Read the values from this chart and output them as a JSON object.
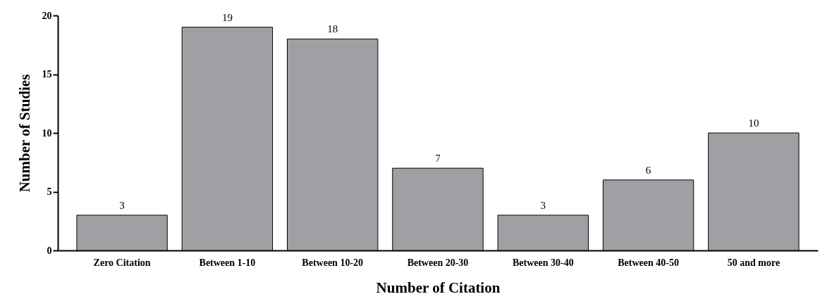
{
  "chart_data": {
    "type": "bar",
    "xlabel": "Number of Citation",
    "ylabel": "Number of Studies",
    "categories": [
      "Zero Citation",
      "Between 1-10",
      "Between 10-20",
      "Between 20-30",
      "Between 30-40",
      "Between 40-50",
      "50 and more"
    ],
    "values": [
      3,
      19,
      18,
      7,
      3,
      6,
      10
    ],
    "color": "#a09fa4",
    "ylim": [
      0,
      20
    ],
    "yticks": [
      0,
      5,
      10,
      15,
      20
    ],
    "grid": false,
    "data_labels": true
  }
}
